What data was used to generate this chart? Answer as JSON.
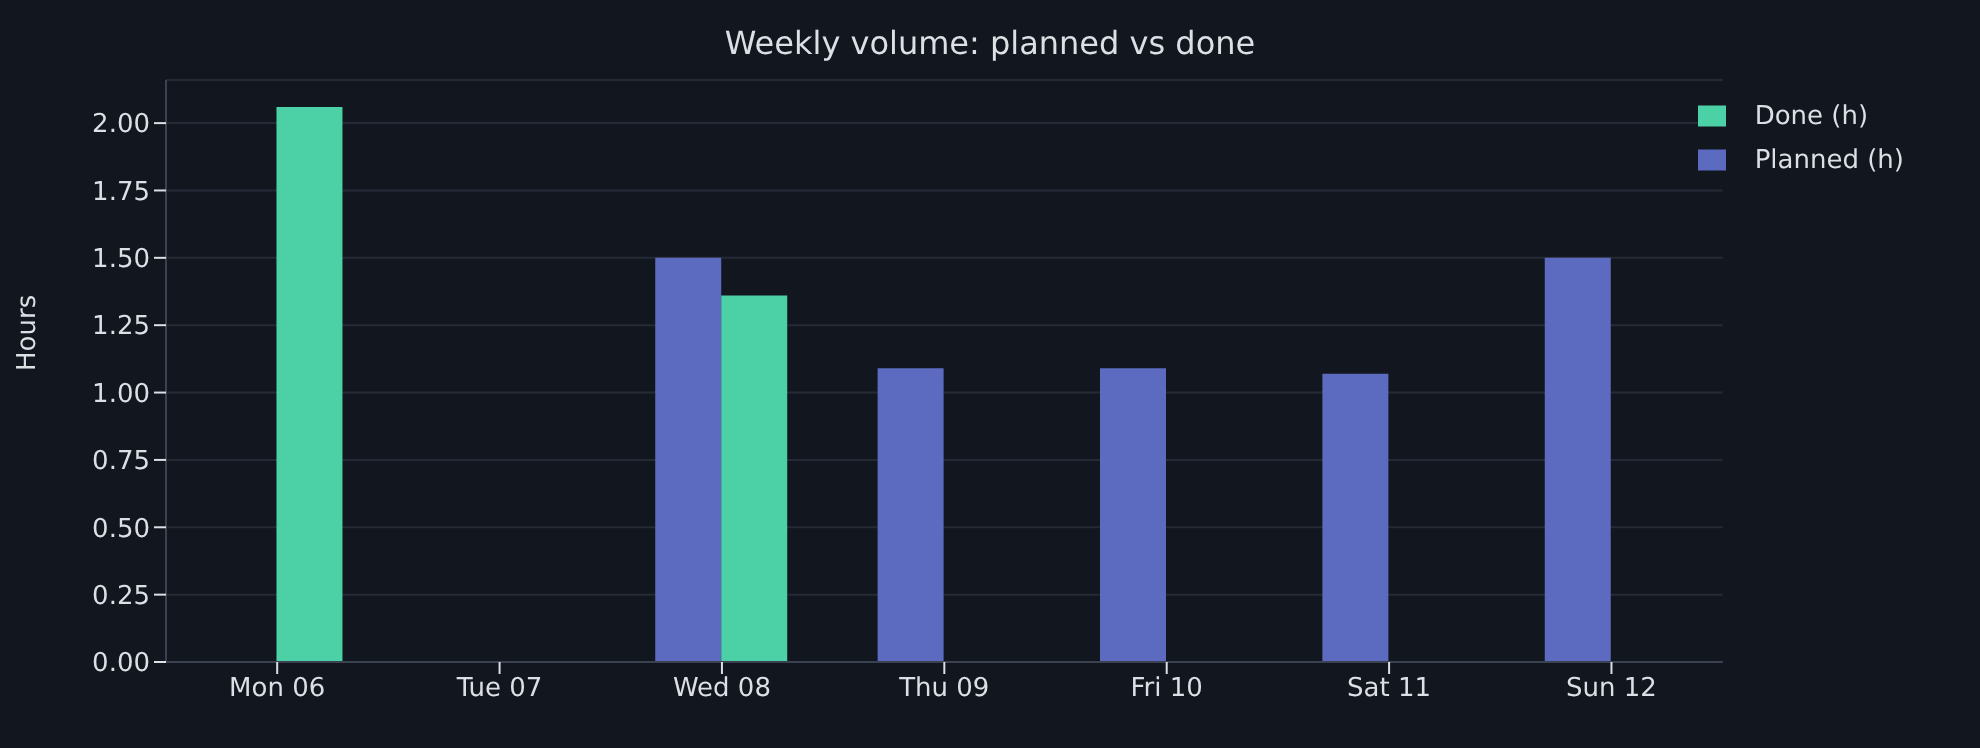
{
  "chart_data": {
    "type": "bar",
    "title": "Weekly volume: planned vs done",
    "ylabel": "Hours",
    "categories": [
      "Mon 06",
      "Tue 07",
      "Wed 08",
      "Thu 09",
      "Fri 10",
      "Sat 11",
      "Sun 12"
    ],
    "series": [
      {
        "name": "Planned (h)",
        "color": "#5c6bc0",
        "values": [
          0,
          0,
          1.5,
          1.09,
          1.09,
          1.07,
          1.5
        ]
      },
      {
        "name": "Done (h)",
        "color": "#4cd1a6",
        "values": [
          2.06,
          0,
          1.36,
          0,
          0,
          0,
          0
        ]
      }
    ],
    "ylim": [
      0,
      2.16
    ],
    "yticks": [
      {
        "value": 0,
        "label": "0.00"
      },
      {
        "value": 0.25,
        "label": "0.25"
      },
      {
        "value": 0.5,
        "label": "0.50"
      },
      {
        "value": 0.75,
        "label": "0.75"
      },
      {
        "value": 1,
        "label": "1.00"
      },
      {
        "value": 1.25,
        "label": "1.25"
      },
      {
        "value": 1.5,
        "label": "1.50"
      },
      {
        "value": 1.75,
        "label": "1.75"
      },
      {
        "value": 2,
        "label": "2.00"
      }
    ],
    "grid": "y",
    "legend": "top right"
  }
}
